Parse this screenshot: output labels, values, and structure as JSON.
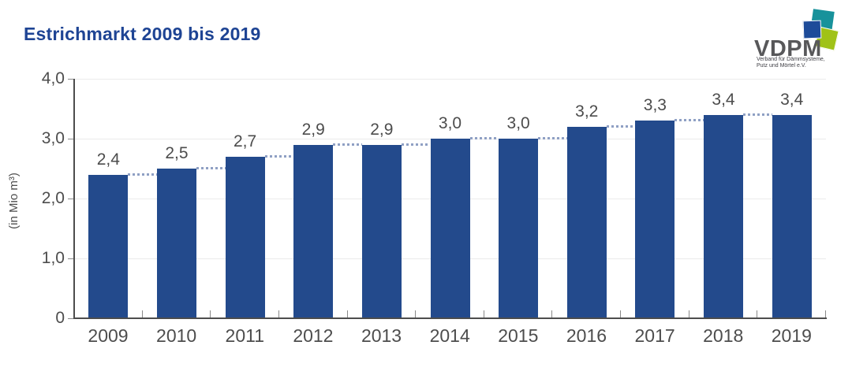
{
  "title": "Estrichmarkt 2009 bis 2019",
  "colors": {
    "title_blue": "#1e4494",
    "bar_blue": "#234a8c",
    "trend_dotted": "#8fa0c4",
    "axis_gray": "#4d4d4d",
    "grid_gray": "#ebebeb",
    "text_gray": "#4c4c4c",
    "tick_gray": "#8a8a8a"
  },
  "logo": {
    "wordmark": "VDPM",
    "subtitle_line1": "Verband für Dämmsysteme,",
    "subtitle_line2": "Putz und Mörtel e.V.",
    "colors": {
      "teal": "#18929b",
      "blue": "#1d4b99",
      "lime": "#a0c217",
      "text": "#58585a"
    }
  },
  "chart_data": {
    "type": "bar",
    "title": "Estrichmarkt 2009 bis 2019",
    "categories": [
      "2009",
      "2010",
      "2011",
      "2012",
      "2013",
      "2014",
      "2015",
      "2016",
      "2017",
      "2018",
      "2019"
    ],
    "values": [
      2.4,
      2.5,
      2.7,
      2.9,
      2.9,
      3.0,
      3.0,
      3.2,
      3.3,
      3.4,
      3.4
    ],
    "value_labels": [
      "2,4",
      "2,5",
      "2,7",
      "2,9",
      "2,9",
      "3,0",
      "3,0",
      "3,2",
      "3,3",
      "3,4",
      "3,4"
    ],
    "xlabel": "",
    "ylabel": "(in Mio m³)",
    "ylim": [
      0,
      4.0
    ],
    "ytick_values": [
      0,
      1.0,
      2.0,
      3.0,
      4.0
    ],
    "ytick_labels": [
      "0",
      "1,0",
      "2,0",
      "3,0",
      "4,0"
    ],
    "grid": true,
    "legend": false,
    "trend_line": {
      "style": "dotted",
      "shape": "step-horizontal-at-left-bar-top"
    }
  }
}
